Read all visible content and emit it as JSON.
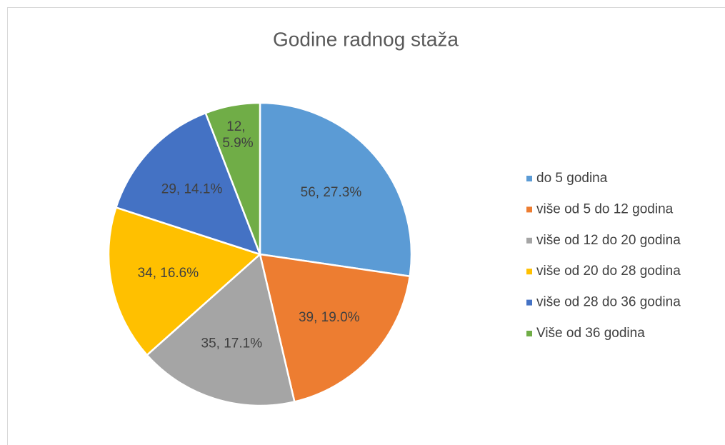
{
  "chart_data": {
    "type": "pie",
    "title": "Godine radnog staža",
    "categories": [
      "do 5 godina",
      "više od 5 do 12 godina",
      "više od 12 do 20 godina",
      "više od 20 do 28 godina",
      "više od 28 do 36 godina",
      "Više od 36 godina"
    ],
    "values": [
      56,
      39,
      35,
      34,
      29,
      12
    ],
    "value_labels": [
      "56, 27.3%",
      "39, 19.0%",
      "35, 17.1%",
      "34, 16.6%",
      "29, 14.1%",
      "12, 5.9%"
    ],
    "colors": [
      "#5b9bd5",
      "#ed7d31",
      "#a5a5a5",
      "#ffc000",
      "#4472c4",
      "#70ad47"
    ],
    "legend": "right"
  }
}
